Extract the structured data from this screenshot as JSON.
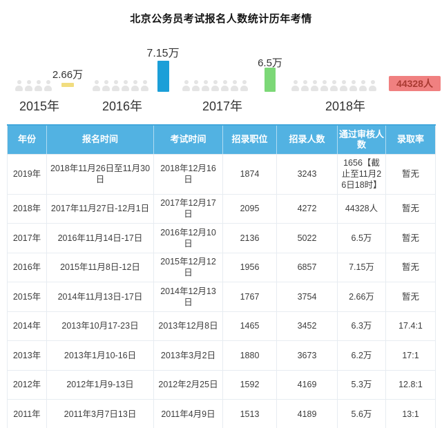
{
  "page": {
    "title": "北京公务员考试报名人数统计历年考情"
  },
  "chart_data": {
    "type": "bar",
    "subtype": "pictograph",
    "title": "北京公务员考试报名人数统计历年考情",
    "categories": [
      "2015年",
      "2016年",
      "2017年",
      "2018年"
    ],
    "values": [
      26600,
      71500,
      65000,
      44328
    ],
    "xlabel": "",
    "ylabel": "",
    "legend": "none",
    "grid": false,
    "groups": [
      {
        "category": "2015年",
        "label": "2.66万",
        "value": 26600,
        "color": "#f1dd7f",
        "icon_count": 4,
        "marker": "bar"
      },
      {
        "category": "2016年",
        "label": "7.15万",
        "value": 71500,
        "color": "#1b9fd8",
        "icon_count": 6,
        "marker": "bar"
      },
      {
        "category": "2017年",
        "label": "6.5万",
        "value": 65000,
        "color": "#7cd877",
        "icon_count": 7,
        "marker": "bar"
      },
      {
        "category": "2018年",
        "label": "44328人",
        "value": 44328,
        "color": "#f08080",
        "icon_count": 9,
        "marker": "badge"
      }
    ],
    "icon_meaning": "person-icon",
    "icon_color": "#e4e4e4"
  },
  "table": {
    "headers": [
      "年份",
      "报名时间",
      "考试时间",
      "招录职位",
      "招录人数",
      "通过审核人数",
      "录取率"
    ],
    "rows": [
      [
        "2019年",
        "2018年11月26日至11月30日",
        "2018年12月16日",
        "1874",
        "3243",
        "1656【截止至11月26日18时】",
        "暂无"
      ],
      [
        "2018年",
        "2017年11月27日-12月1日",
        "2017年12月17日",
        "2095",
        "4272",
        "44328人",
        "暂无"
      ],
      [
        "2017年",
        "2016年11月14日-17日",
        "2016年12月10日",
        "2136",
        "5022",
        "6.5万",
        "暂无"
      ],
      [
        "2016年",
        "2015年11月8日-12日",
        "2015年12月12日",
        "1956",
        "6857",
        "7.15万",
        "暂无"
      ],
      [
        "2015年",
        "2014年11月13日-17日",
        "2014年12月13日",
        "1767",
        "3754",
        "2.66万",
        "暂无"
      ],
      [
        "2014年",
        "2013年10月17-23日",
        "2013年12月8日",
        "1465",
        "3452",
        "6.3万",
        "17.4:1"
      ],
      [
        "2013年",
        "2013年1月10-16日",
        "2013年3月2日",
        "1880",
        "3673",
        "6.2万",
        "17:1"
      ],
      [
        "2012年",
        "2012年1月9-13日",
        "2012年2月25日",
        "1592",
        "4169",
        "5.3万",
        "12.8:1"
      ],
      [
        "2011年",
        "2011年3月7日13日",
        "2011年4月9日",
        "1513",
        "4189",
        "5.6万",
        "13:1"
      ]
    ]
  },
  "colors": {
    "header_bg": "#52b2e2",
    "header_text": "#ffffff",
    "bar_2015": "#f1dd7f",
    "bar_2016": "#1b9fd8",
    "bar_2017": "#7cd877",
    "badge_2018_bg": "#f08080",
    "badge_2018_text": "#a93a32",
    "person_icon": "#e4e4e4",
    "row_border": "#e7ecf1"
  }
}
